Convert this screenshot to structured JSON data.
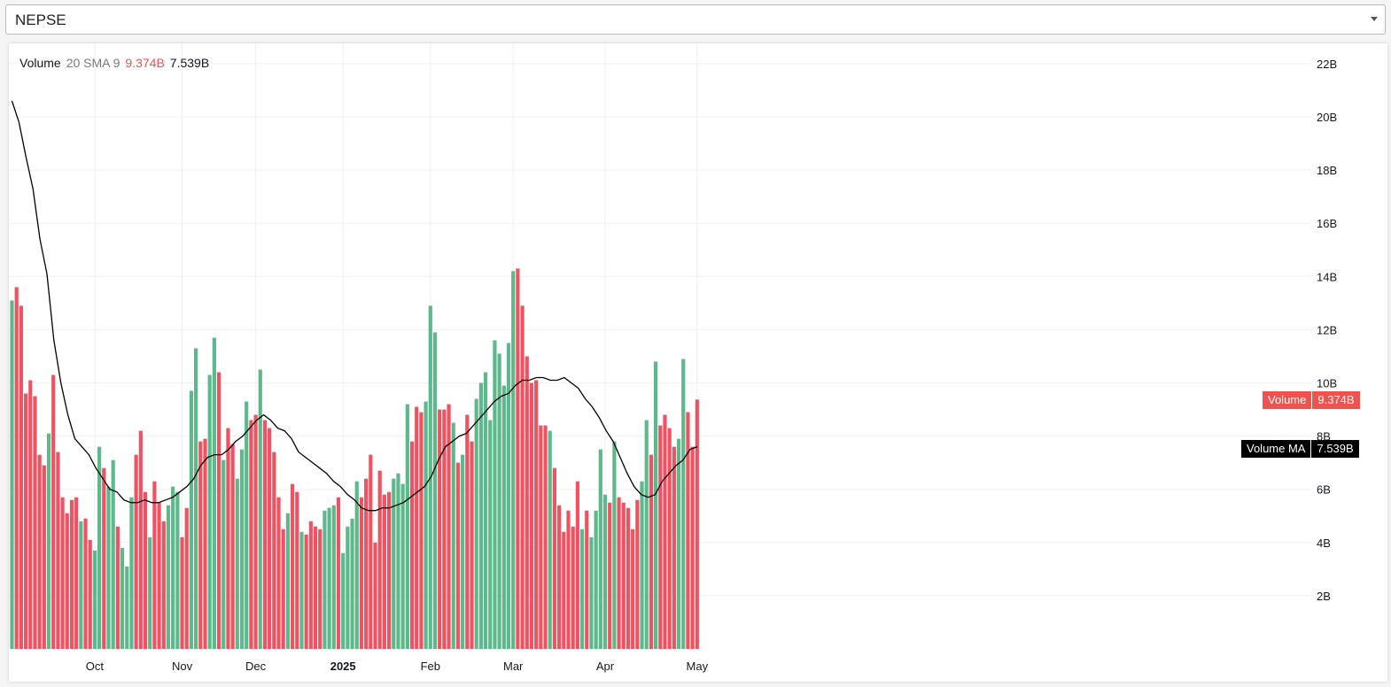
{
  "symbol_selector": {
    "value": "NEPSE"
  },
  "legend": {
    "title": "Volume",
    "params": "20 SMA 9",
    "volume_value": "9.374B",
    "ma_value": "7.539B"
  },
  "price_tags": {
    "volume_label": "Volume",
    "volume_value": "9.374B",
    "ma_label": "Volume MA",
    "ma_value": "7.539B"
  },
  "colors": {
    "up": "#26a69a",
    "up_bar": "#5bb98c",
    "down_bar": "#ef5362",
    "ma_line": "#000000",
    "grid": "#f0f0f0",
    "axis_text": "#131722"
  },
  "chart_data": {
    "type": "bar",
    "title": "",
    "xlabel": "",
    "ylabel": "",
    "ylim": [
      0,
      22.5
    ],
    "unit": "B",
    "y_ticks": [
      "2B",
      "4B",
      "6B",
      "8B",
      "10B",
      "12B",
      "14B",
      "16B",
      "18B",
      "20B",
      "22B"
    ],
    "x_ticks": [
      {
        "label": "Oct",
        "index": 18,
        "bold": false
      },
      {
        "label": "Nov",
        "index": 37,
        "bold": false
      },
      {
        "label": "Dec",
        "index": 53,
        "bold": false
      },
      {
        "label": "2025",
        "index": 72,
        "bold": true
      },
      {
        "label": "Feb",
        "index": 91,
        "bold": false
      },
      {
        "label": "Mar",
        "index": 109,
        "bold": false
      },
      {
        "label": "Apr",
        "index": 129,
        "bold": false
      },
      {
        "label": "May",
        "index": 149,
        "bold": false
      }
    ],
    "series": [
      {
        "name": "Volume",
        "values": [
          13.1,
          13.6,
          12.9,
          9.6,
          10.1,
          9.5,
          7.3,
          6.9,
          8.1,
          10.3,
          7.4,
          5.7,
          5.1,
          5.6,
          5.7,
          4.8,
          4.9,
          4.1,
          3.7,
          7.6,
          6.8,
          6.1,
          7.1,
          4.6,
          3.8,
          3.1,
          5.7,
          7.3,
          8.2,
          5.9,
          4.2,
          6.3,
          5.5,
          4.8,
          5.4,
          6.1,
          5.9,
          4.2,
          5.3,
          9.7,
          11.3,
          7.8,
          7.9,
          10.3,
          11.7,
          10.4,
          7.1,
          8.3,
          7.7,
          6.4,
          7.5,
          9.3,
          8.6,
          8.8,
          10.5,
          8.6,
          8.3,
          7.4,
          5.7,
          4.5,
          5.1,
          6.2,
          5.9,
          4.4,
          4.3,
          4.8,
          4.6,
          4.5,
          5.2,
          5.3,
          5.4,
          5.7,
          3.6,
          4.6,
          4.9,
          6.3,
          5.7,
          6.4,
          7.3,
          4.0,
          6.7,
          5.8,
          5.9,
          6.4,
          6.6,
          6.2,
          9.2,
          7.8,
          9.1,
          8.9,
          9.3,
          12.9,
          11.9,
          9.0,
          9.0,
          9.2,
          8.5,
          7.0,
          7.3,
          8.8,
          7.8,
          9.4,
          10.0,
          10.4,
          8.6,
          11.6,
          11.1,
          9.9,
          11.5,
          14.2,
          14.3,
          12.9,
          11.0,
          10.0,
          10.1,
          8.4,
          8.4,
          8.2,
          6.8,
          5.4,
          4.4,
          5.2,
          4.6,
          6.3,
          4.5,
          5.2,
          4.2,
          5.2,
          7.5,
          5.8,
          5.5,
          7.8,
          5.7,
          5.5,
          5.3,
          4.5,
          5.6,
          6.3,
          8.6,
          7.3,
          10.8,
          8.4,
          8.8,
          8.3,
          7.6,
          7.9,
          10.9,
          8.9,
          7.6,
          9.374
        ],
        "direction": [
          1,
          0,
          0,
          0,
          0,
          0,
          0,
          0,
          1,
          0,
          0,
          0,
          0,
          0,
          0,
          1,
          0,
          0,
          1,
          1,
          0,
          1,
          1,
          0,
          1,
          1,
          1,
          0,
          0,
          0,
          1,
          0,
          0,
          0,
          1,
          1,
          1,
          0,
          0,
          1,
          1,
          0,
          0,
          1,
          1,
          0,
          1,
          0,
          0,
          1,
          1,
          1,
          0,
          0,
          1,
          0,
          0,
          0,
          0,
          0,
          1,
          0,
          0,
          1,
          0,
          0,
          0,
          0,
          1,
          1,
          1,
          0,
          1,
          1,
          1,
          1,
          0,
          0,
          0,
          0,
          0,
          0,
          0,
          1,
          1,
          1,
          1,
          0,
          0,
          0,
          1,
          1,
          1,
          0,
          0,
          0,
          1,
          0,
          1,
          0,
          0,
          1,
          1,
          1,
          1,
          1,
          1,
          1,
          1,
          1,
          0,
          0,
          0,
          0,
          0,
          0,
          0,
          1,
          0,
          0,
          0,
          0,
          0,
          0,
          1,
          0,
          1,
          1,
          1,
          1,
          0,
          1,
          0,
          0,
          0,
          0,
          0,
          1,
          1,
          0,
          1,
          0,
          0,
          0,
          0,
          1,
          1,
          0,
          0,
          0
        ]
      },
      {
        "name": "Volume MA",
        "values": [
          20.6,
          19.8,
          18.5,
          17.3,
          15.4,
          14.1,
          11.6,
          10.0,
          8.8,
          7.9,
          7.6,
          7.3,
          6.8,
          6.4,
          6.0,
          5.9,
          5.6,
          5.5,
          5.5,
          5.6,
          5.5,
          5.5,
          5.6,
          5.7,
          5.9,
          6.1,
          6.4,
          6.9,
          7.2,
          7.3,
          7.3,
          7.5,
          7.8,
          8.0,
          8.3,
          8.6,
          8.8,
          8.6,
          8.3,
          8.2,
          7.9,
          7.4,
          7.2,
          7.0,
          6.8,
          6.6,
          6.3,
          6.1,
          5.8,
          5.6,
          5.3,
          5.2,
          5.2,
          5.3,
          5.3,
          5.4,
          5.5,
          5.7,
          5.9,
          6.1,
          6.5,
          7.1,
          7.6,
          7.8,
          8.0,
          8.1,
          8.4,
          8.7,
          9.0,
          9.3,
          9.5,
          9.6,
          9.9,
          10.1,
          10.1,
          10.2,
          10.2,
          10.1,
          10.1,
          10.2,
          10.0,
          9.8,
          9.4,
          9.1,
          8.7,
          8.2,
          7.8,
          7.2,
          6.6,
          6.1,
          5.8,
          5.7,
          5.8,
          6.3,
          6.6,
          6.9,
          7.1,
          7.5,
          7.6
        ],
        "ma_index": [
          0,
          1,
          2,
          3,
          4,
          5,
          6,
          7,
          8,
          9,
          10,
          11,
          12,
          13,
          14,
          15,
          16,
          17,
          18,
          19,
          20,
          21,
          22,
          23,
          24,
          25,
          26,
          27,
          28,
          29,
          30,
          31,
          32,
          33,
          34,
          35,
          36,
          37,
          38,
          39,
          40,
          41,
          42,
          43,
          44,
          45,
          46,
          47,
          48,
          49,
          50,
          51,
          52,
          53,
          54,
          55,
          56,
          57,
          58,
          59,
          60,
          61,
          62,
          63,
          64,
          65,
          66,
          67,
          68,
          69,
          70,
          71,
          72,
          73,
          74,
          75,
          76,
          77,
          78,
          79,
          80,
          81,
          82,
          83,
          84,
          85,
          86,
          87,
          88,
          89,
          90,
          91,
          92,
          93,
          94,
          95,
          96,
          97,
          98
        ]
      }
    ]
  }
}
